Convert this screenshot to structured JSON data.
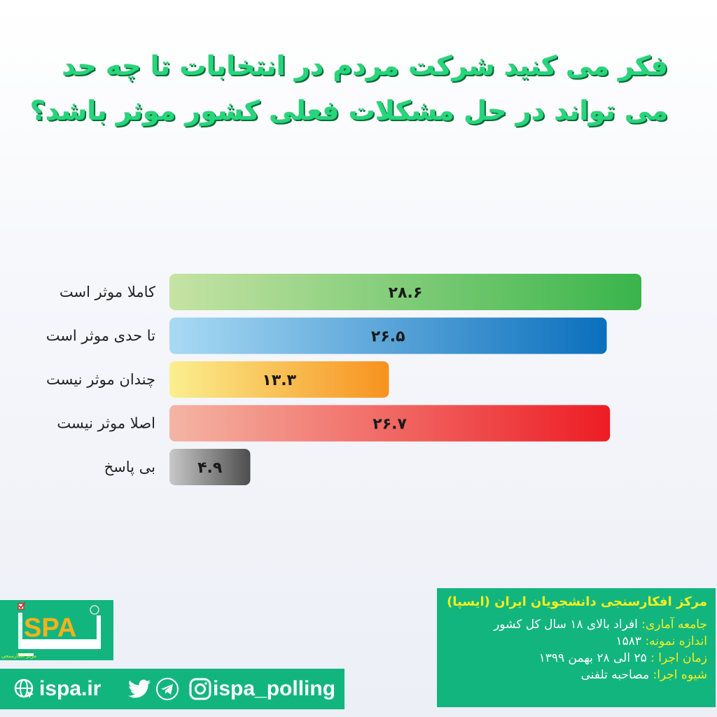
{
  "title_lines": [
    "فکر می کنید شرکت مردم در انتخابات تا چه حد",
    "می تواند در حل مشکلات فعلی کشور موثر باشد؟"
  ],
  "chart_data": {
    "type": "bar",
    "orientation": "horizontal",
    "title": "فکر می کنید شرکت مردم در انتخابات تا چه حد می تواند در حل مشکلات فعلی کشور موثر باشد؟",
    "categories": [
      "کاملا موثر است",
      "تا حدی موثر است",
      "چندان موثر نیست",
      "اصلا موثر نیست",
      "بی پاسخ"
    ],
    "values": [
      28.6,
      26.5,
      13.3,
      26.7,
      4.9
    ],
    "value_labels": [
      "۲۸.۶",
      "۲۶.۵",
      "۱۳.۳",
      "۲۶.۷",
      "۴.۹"
    ],
    "colors": [
      [
        "#c6e3a4",
        "#39b54a"
      ],
      [
        "#a9daf4",
        "#0a6fbd"
      ],
      [
        "#fbef8f",
        "#f7921e"
      ],
      [
        "#f4b5a4",
        "#ed1c24"
      ],
      [
        "#c8c8c8",
        "#4d4d4d"
      ]
    ],
    "xlim": [
      0,
      30
    ],
    "grid": false
  },
  "info": {
    "heading": "مرکز افکارسنجی دانشجویان ایران (ایسپا)",
    "rows": [
      {
        "key": "جامعه آماری:",
        "value": "افراد بالای ۱۸ سال کل کشور"
      },
      {
        "key": "اندازه نمونه:",
        "value": "۱۵۸۳"
      },
      {
        "key": "زمان اجرا :",
        "value": "۲۵ الی ۲۸ بهمن ۱۳۹۹"
      },
      {
        "key": "شیوه اجرا:",
        "value": "مصاحبه تلفنی"
      }
    ]
  },
  "logo": {
    "text": "ISPA",
    "fa": "ایسپا",
    "subtitle": "مرکز افکارسنجی دانشجویان ایران"
  },
  "social": {
    "website": "ispa.ir",
    "handle": "ispa_polling"
  },
  "colors": {
    "brand_green": "#13b57f",
    "title_green": "#25d67a",
    "info_yellow": "#f5f01e"
  }
}
